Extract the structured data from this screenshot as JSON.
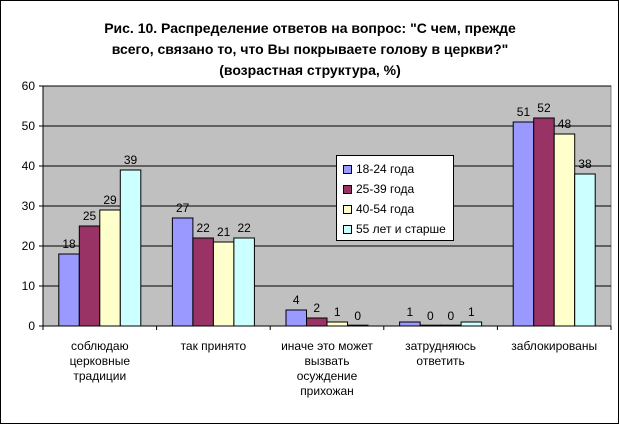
{
  "chart_data": {
    "type": "bar",
    "title": "Рис. 10. Распределение ответов на вопрос: \"С чем, прежде всего, связано то, что Вы покрываете голову в церкви?\" (возрастная структура, %)",
    "title_lines": [
      "Рис. 10. Распределение ответов на вопрос: \"С чем, прежде",
      "всего, связано то, что Вы покрываете голову в церкви?\"",
      "(возрастная структура, %)"
    ],
    "categories": [
      [
        "соблюдаю",
        "церковные",
        "традиции"
      ],
      [
        "так принято"
      ],
      [
        "иначе это может",
        "вызвать",
        "осуждение",
        "прихожан"
      ],
      [
        "затрудняюсь",
        "ответить"
      ],
      [
        "заблокированы"
      ]
    ],
    "series": [
      {
        "name": "18-24 года",
        "values": [
          18,
          27,
          4,
          1,
          51
        ],
        "color": "#9999FF"
      },
      {
        "name": "25-39 года",
        "values": [
          25,
          22,
          2,
          0,
          52
        ],
        "color": "#993366"
      },
      {
        "name": "40-54 года",
        "values": [
          29,
          21,
          1,
          0,
          48
        ],
        "color": "#FFFFCC"
      },
      {
        "name": "55 лет и старше",
        "values": [
          39,
          22,
          0,
          1,
          38
        ],
        "color": "#CCFFFF"
      }
    ],
    "ylim": [
      0,
      60
    ],
    "yticks": [
      0,
      10,
      20,
      30,
      40,
      50,
      60
    ],
    "grid": true,
    "plot_background": "#C0C0C0",
    "legend_position": "center"
  }
}
